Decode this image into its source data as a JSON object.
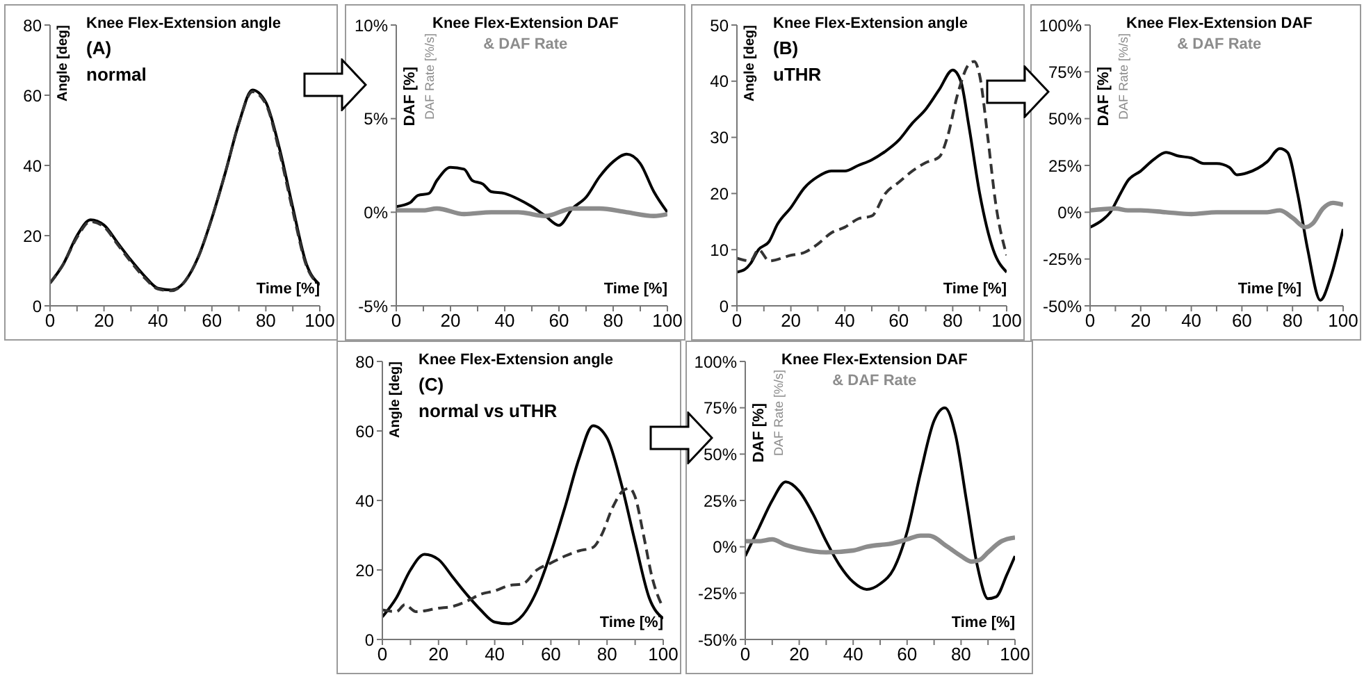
{
  "chart_data": [
    {
      "type": "line",
      "title": "Knee Flex-Extension angle",
      "annotations": [
        "(A)",
        "normal"
      ],
      "xlabel": "Time [%]",
      "ylabel": "Angle [deg]",
      "marker": "none",
      "xlim": [
        0,
        100
      ],
      "xticks": [
        0,
        {
          "value": 10,
          "label": null
        },
        20,
        {
          "value": 30,
          "label": null
        },
        40,
        {
          "value": 50,
          "label": null
        },
        60,
        {
          "value": 70,
          "label": null
        },
        80,
        {
          "value": 90,
          "label": null
        },
        100
      ],
      "ylim": [
        0,
        80
      ],
      "yticks": [
        0,
        20,
        40,
        60,
        80
      ],
      "series": [
        {
          "color": "#000000",
          "line_style": "solid",
          "x": [
            0,
            5,
            10,
            15,
            20,
            25,
            30,
            35,
            40,
            45,
            50,
            55,
            60,
            65,
            70,
            75,
            80,
            85,
            90,
            95,
            100
          ],
          "values": [
            6.5,
            12,
            20,
            24.5,
            23,
            18,
            13,
            8.5,
            5,
            4.5,
            7,
            14,
            25,
            38,
            52,
            61.5,
            58,
            45,
            28,
            12,
            6
          ]
        },
        {
          "color": "#333333",
          "line_style": "dashed",
          "x": [
            0,
            5,
            10,
            15,
            20,
            25,
            30,
            35,
            40,
            45,
            50,
            55,
            60,
            65,
            70,
            75,
            80,
            85,
            90,
            95,
            100
          ],
          "values": [
            6.5,
            12,
            19.5,
            24,
            22.5,
            17.5,
            12.5,
            8,
            4.8,
            4.3,
            7,
            14,
            25,
            38,
            52,
            61,
            57.5,
            44,
            27,
            11.5,
            6
          ]
        }
      ]
    },
    {
      "type": "line",
      "title": "Knee Flex-Extension DAF",
      "subtitle": "& DAF Rate",
      "xlabel": "Time [%]",
      "ylabel": "DAF [%]",
      "y2label": "DAF Rate [%/s]",
      "marker": "none",
      "xlim": [
        0,
        100
      ],
      "xticks": [
        0,
        {
          "value": 10,
          "label": null
        },
        20,
        {
          "value": 30,
          "label": null
        },
        40,
        {
          "value": 50,
          "label": null
        },
        60,
        {
          "value": 70,
          "label": null
        },
        80,
        {
          "value": 90,
          "label": null
        },
        100
      ],
      "ylim": [
        -5,
        10
      ],
      "yticks": [
        {
          "value": -5,
          "label": "-5%"
        },
        {
          "value": 0,
          "label": "0%"
        },
        {
          "value": 5,
          "label": "5%"
        },
        {
          "value": 10,
          "label": "10%"
        }
      ],
      "series": [
        {
          "color": "#000000",
          "line_style": "solid",
          "x": [
            0,
            5,
            8,
            12,
            15,
            20,
            25,
            28,
            32,
            35,
            40,
            45,
            50,
            55,
            60,
            65,
            70,
            75,
            80,
            85,
            90,
            95,
            100
          ],
          "values": [
            0.3,
            0.5,
            0.9,
            1.0,
            1.7,
            2.4,
            2.3,
            1.7,
            1.5,
            1.1,
            1.0,
            0.7,
            0.3,
            -0.2,
            -0.7,
            0.2,
            0.8,
            1.9,
            2.7,
            3.1,
            2.6,
            1.1,
            0
          ]
        },
        {
          "color": "#8c8c8c",
          "line_style": "solid",
          "x": [
            0,
            10,
            15,
            25,
            35,
            45,
            55,
            65,
            75,
            85,
            95,
            100
          ],
          "values": [
            0.1,
            0.1,
            0.2,
            -0.1,
            0,
            0,
            -0.2,
            0.2,
            0.2,
            0,
            -0.2,
            -0.1
          ]
        }
      ]
    },
    {
      "type": "line",
      "title": "Knee Flex-Extension angle",
      "annotations": [
        "(B)",
        "uTHR"
      ],
      "xlabel": "Time [%]",
      "ylabel": "Angle [deg]",
      "marker": "none",
      "xlim": [
        0,
        100
      ],
      "xticks": [
        0,
        {
          "value": 10,
          "label": null
        },
        20,
        {
          "value": 30,
          "label": null
        },
        40,
        {
          "value": 50,
          "label": null
        },
        60,
        {
          "value": 70,
          "label": null
        },
        80,
        {
          "value": 90,
          "label": null
        },
        100
      ],
      "ylim": [
        0,
        50
      ],
      "yticks": [
        0,
        10,
        20,
        30,
        40,
        50
      ],
      "series": [
        {
          "color": "#000000",
          "line_style": "solid",
          "x": [
            0,
            3,
            5,
            8,
            12,
            15,
            20,
            25,
            30,
            35,
            40,
            45,
            50,
            55,
            60,
            65,
            70,
            75,
            80,
            83,
            86,
            90,
            95,
            100
          ],
          "values": [
            6,
            6.5,
            7.5,
            10,
            11.5,
            14.5,
            17.5,
            21,
            23,
            24,
            24,
            25,
            26,
            27.5,
            29.5,
            32.5,
            35,
            38.5,
            42,
            40,
            32,
            20,
            10,
            6
          ]
        },
        {
          "color": "#333333",
          "line_style": "dashed",
          "x": [
            0,
            5,
            8,
            12,
            20,
            25,
            30,
            35,
            40,
            45,
            50,
            55,
            60,
            65,
            70,
            75,
            78,
            82,
            86,
            88,
            90,
            93,
            96,
            100
          ],
          "values": [
            8.5,
            8,
            10,
            8,
            9,
            9.5,
            11,
            13,
            14,
            15.5,
            16,
            20,
            22,
            24,
            25.5,
            26.5,
            30,
            38,
            43,
            43.5,
            41,
            30,
            18,
            9
          ]
        }
      ]
    },
    {
      "type": "line",
      "title": "Knee Flex-Extension DAF",
      "subtitle": "& DAF Rate",
      "xlabel": "Time [%]",
      "ylabel": "DAF [%]",
      "y2label": "DAF Rate [%/s]",
      "marker": "none",
      "xlim": [
        0,
        100
      ],
      "xticks": [
        0,
        {
          "value": 10,
          "label": null
        },
        20,
        {
          "value": 30,
          "label": null
        },
        40,
        {
          "value": 50,
          "label": null
        },
        60,
        {
          "value": 70,
          "label": null
        },
        80,
        {
          "value": 90,
          "label": null
        },
        100
      ],
      "ylim": [
        -50,
        100
      ],
      "yticks": [
        {
          "value": -50,
          "label": "-50%"
        },
        {
          "value": -25,
          "label": "-25%"
        },
        {
          "value": 0,
          "label": "0%"
        },
        {
          "value": 25,
          "label": "25%"
        },
        {
          "value": 50,
          "label": "50%"
        },
        {
          "value": 75,
          "label": "75%"
        },
        {
          "value": 100,
          "label": "100%"
        }
      ],
      "series": [
        {
          "color": "#000000",
          "line_style": "solid",
          "x": [
            0,
            5,
            8,
            12,
            15,
            20,
            25,
            30,
            35,
            40,
            45,
            50,
            55,
            58,
            62,
            70,
            75,
            78,
            82,
            86,
            91,
            95,
            100
          ],
          "values": [
            -8,
            -4,
            0,
            10,
            17,
            22,
            28,
            32,
            30,
            29,
            26,
            26,
            24,
            20,
            21,
            27,
            34,
            32,
            10,
            -20,
            -47,
            -35,
            -9
          ]
        },
        {
          "color": "#8c8c8c",
          "line_style": "solid",
          "x": [
            0,
            10,
            15,
            20,
            30,
            40,
            50,
            60,
            70,
            75,
            80,
            85,
            88,
            92,
            96,
            100
          ],
          "values": [
            1,
            2,
            1,
            1,
            0,
            -1,
            0,
            0,
            0,
            1,
            -3,
            -8,
            -6,
            2,
            5,
            4
          ]
        }
      ]
    },
    {
      "type": "line",
      "title": "Knee Flex-Extension angle",
      "annotations": [
        "(C)",
        "normal vs uTHR"
      ],
      "xlabel": "Time [%]",
      "ylabel": "Angle [deg]",
      "marker": "none",
      "xlim": [
        0,
        100
      ],
      "xticks": [
        0,
        {
          "value": 10,
          "label": null
        },
        20,
        {
          "value": 30,
          "label": null
        },
        40,
        {
          "value": 50,
          "label": null
        },
        60,
        {
          "value": 70,
          "label": null
        },
        80,
        {
          "value": 90,
          "label": null
        },
        100
      ],
      "ylim": [
        0,
        80
      ],
      "yticks": [
        0,
        20,
        40,
        60,
        80
      ],
      "series": [
        {
          "color": "#000000",
          "line_style": "solid",
          "x": [
            0,
            5,
            10,
            15,
            20,
            25,
            30,
            35,
            40,
            45,
            50,
            55,
            60,
            65,
            70,
            75,
            80,
            85,
            90,
            95,
            100
          ],
          "values": [
            6.5,
            12,
            20,
            24.5,
            23,
            18,
            13,
            8.5,
            5,
            4.5,
            7,
            14,
            25,
            38,
            52,
            61.5,
            58,
            45,
            28,
            12,
            6
          ]
        },
        {
          "color": "#333333",
          "line_style": "dashed",
          "x": [
            0,
            5,
            8,
            12,
            20,
            25,
            30,
            35,
            40,
            45,
            50,
            55,
            60,
            65,
            70,
            75,
            78,
            82,
            86,
            88,
            90,
            93,
            96,
            100
          ],
          "values": [
            8.5,
            8,
            10,
            8,
            9,
            9.5,
            11,
            13,
            14,
            15.5,
            16,
            20,
            22,
            24,
            25.5,
            26.5,
            30,
            38,
            43,
            43.5,
            41,
            30,
            18,
            9
          ]
        }
      ]
    },
    {
      "type": "line",
      "title": "Knee Flex-Extension DAF",
      "subtitle": "& DAF Rate",
      "xlabel": "Time [%]",
      "ylabel": "DAF [%]",
      "y2label": "DAF Rate [%/s]",
      "marker": "none",
      "xlim": [
        0,
        100
      ],
      "xticks": [
        0,
        {
          "value": 10,
          "label": null
        },
        20,
        {
          "value": 30,
          "label": null
        },
        40,
        {
          "value": 50,
          "label": null
        },
        60,
        {
          "value": 70,
          "label": null
        },
        80,
        {
          "value": 90,
          "label": null
        },
        100
      ],
      "ylim": [
        -50,
        100
      ],
      "yticks": [
        {
          "value": -50,
          "label": "-50%"
        },
        {
          "value": -25,
          "label": "-25%"
        },
        {
          "value": 0,
          "label": "0%"
        },
        {
          "value": 25,
          "label": "25%"
        },
        {
          "value": 50,
          "label": "50%"
        },
        {
          "value": 75,
          "label": "75%"
        },
        {
          "value": 100,
          "label": "100%"
        }
      ],
      "series": [
        {
          "color": "#000000",
          "line_style": "solid",
          "x": [
            0,
            5,
            10,
            15,
            20,
            25,
            30,
            35,
            40,
            45,
            50,
            55,
            60,
            65,
            70,
            74,
            78,
            82,
            86,
            90,
            93,
            97,
            100
          ],
          "values": [
            -5,
            10,
            25,
            35,
            30,
            18,
            3,
            -10,
            -19,
            -23,
            -20,
            -12,
            8,
            40,
            68,
            75,
            60,
            25,
            -10,
            -28,
            -27,
            -15,
            -5
          ]
        },
        {
          "color": "#8c8c8c",
          "line_style": "solid",
          "x": [
            0,
            5,
            10,
            15,
            20,
            30,
            40,
            45,
            55,
            60,
            65,
            68,
            75,
            80,
            84,
            87,
            90,
            95,
            100
          ],
          "values": [
            3,
            3,
            4,
            1,
            -1,
            -3,
            -2,
            0,
            2,
            4,
            6,
            6,
            0,
            -5,
            -8,
            -7,
            -3,
            3,
            5
          ]
        }
      ]
    }
  ]
}
